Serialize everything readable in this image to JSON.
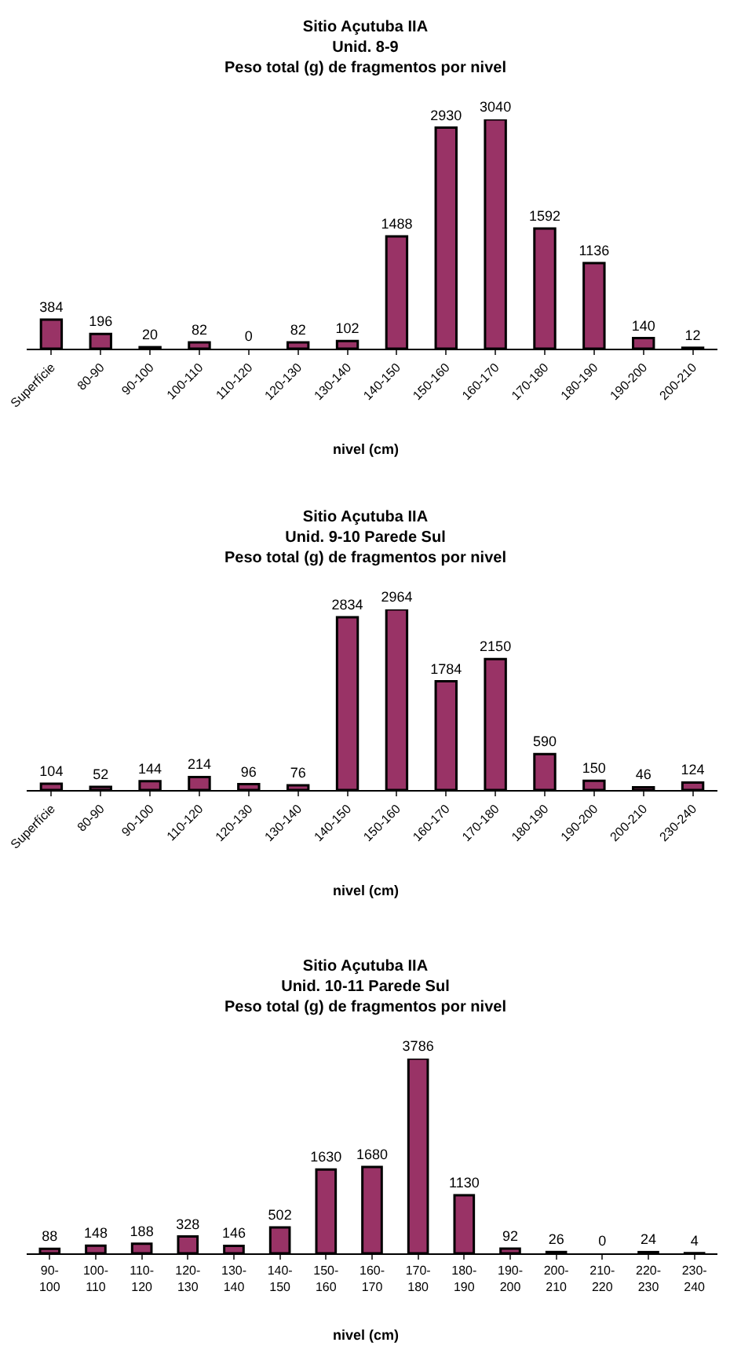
{
  "chart_data": [
    {
      "type": "bar",
      "title": "Sitio Açutuba IIA\nUnid. 8-9\nPeso total (g) de fragmentos por nivel",
      "xlabel": "nivel (cm)",
      "categories": [
        "Superfície",
        "80-90",
        "90-100",
        "100-110",
        "110-120",
        "120-130",
        "130-140",
        "140-150",
        "150-160",
        "160-170",
        "170-180",
        "180-190",
        "190-200",
        "200-210"
      ],
      "values": [
        384,
        196,
        20,
        82,
        0,
        82,
        102,
        1488,
        2930,
        3040,
        1592,
        1136,
        140,
        12
      ],
      "color": "#993366",
      "data_labels": true,
      "tick_labels": "x"
    },
    {
      "type": "bar",
      "title": "Sitio Açutuba IIA\nUnid. 9-10 Parede Sul\nPeso total (g) de fragmentos por nivel",
      "xlabel": "nivel (cm)",
      "categories": [
        "Superfície",
        "80-90",
        "90-100",
        "110-120",
        "120-130",
        "130-140",
        "140-150",
        "150-160",
        "160-170",
        "170-180",
        "180-190",
        "190-200",
        "200-210",
        "230-240"
      ],
      "values": [
        104,
        52,
        144,
        214,
        96,
        76,
        2834,
        2964,
        1784,
        2150,
        590,
        150,
        46,
        124
      ],
      "color": "#993366",
      "data_labels": true,
      "tick_labels": "x"
    },
    {
      "type": "bar",
      "title": "Sitio Açutuba IIA\nUnid. 10-11 Parede Sul\nPeso total (g) de fragmentos por nivel",
      "xlabel": "nivel (cm)",
      "categories": [
        "90-\n100",
        "100-\n110",
        "110-\n120",
        "120-\n130",
        "130-\n140",
        "140-\n150",
        "150-\n160",
        "160-\n170",
        "170-\n180",
        "180-\n190",
        "190-\n200",
        "200-\n210",
        "210-\n220",
        "220-\n230",
        "230-\n240"
      ],
      "values": [
        88,
        148,
        188,
        328,
        146,
        502,
        1630,
        1680,
        3786,
        1130,
        92,
        26,
        0,
        24,
        4
      ],
      "color": "#993366",
      "data_labels": true,
      "tick_labels": "x"
    }
  ]
}
